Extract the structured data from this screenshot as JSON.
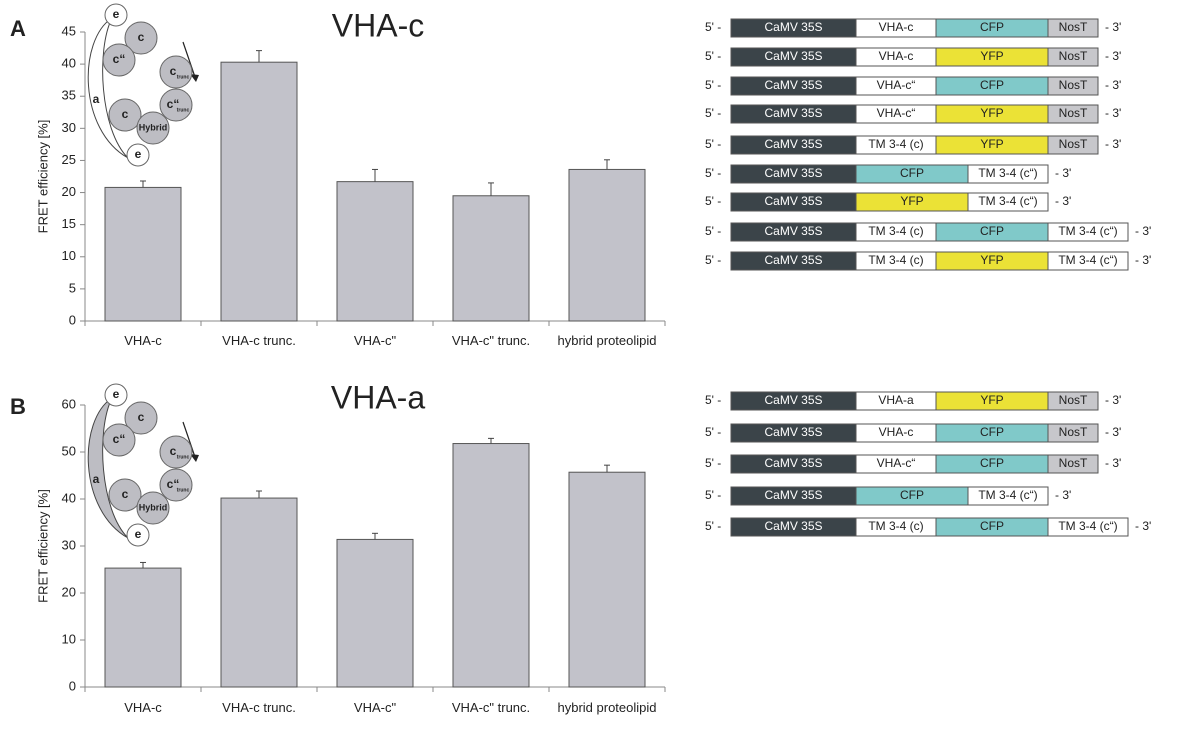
{
  "panel_labels": [
    "A",
    "B"
  ],
  "chart_data": [
    {
      "type": "bar",
      "title": "VHA-c",
      "y_label": "FRET efficiency [%]",
      "categories": [
        "VHA-c",
        "VHA-c trunc.",
        "VHA-c\"",
        "VHA-c\" trunc.",
        "hybrid proteolipid"
      ],
      "values": [
        20.8,
        40.3,
        21.7,
        19.5,
        23.6
      ],
      "errors": [
        1.0,
        1.8,
        1.9,
        2.0,
        1.5
      ],
      "color": "#c2c2ca",
      "ylim": [
        0,
        45
      ],
      "yticks": [
        0,
        5,
        10,
        15,
        20,
        25,
        30,
        35,
        40,
        45
      ],
      "grid": false
    },
    {
      "type": "bar",
      "title": "VHA-a",
      "y_label": "FRET efficiency [%]",
      "categories": [
        "VHA-c",
        "VHA-c trunc.",
        "VHA-c\"",
        "VHA-c\" trunc.",
        "hybrid proteolipid"
      ],
      "values": [
        25.3,
        40.2,
        31.4,
        51.8,
        45.7
      ],
      "errors": [
        1.2,
        1.5,
        1.3,
        1.1,
        1.5
      ],
      "color": "#c2c2ca",
      "ylim": [
        0,
        60
      ],
      "yticks": [
        0,
        10,
        20,
        30,
        40,
        50,
        60
      ],
      "grid": false
    }
  ],
  "insets": [
    {
      "labels": [
        {
          "text": "e"
        },
        {
          "text": "c"
        },
        {
          "text": "c“"
        },
        {
          "text": "c",
          "sub": "trunc"
        },
        {
          "text": "c"
        },
        {
          "text": "c“",
          "sub": "trunc"
        },
        {
          "text": "Hybrid"
        },
        {
          "text": "e"
        },
        {
          "text": "a"
        }
      ]
    },
    {
      "labels": [
        {
          "text": "e"
        },
        {
          "text": "c"
        },
        {
          "text": "c“"
        },
        {
          "text": "c",
          "sub": "trunc"
        },
        {
          "text": "c"
        },
        {
          "text": "c“",
          "sub": "trunc"
        },
        {
          "text": "Hybrid"
        },
        {
          "text": "e"
        },
        {
          "text": "a"
        }
      ]
    }
  ],
  "constructs": [
    [
      {
        "prefix": "5' -",
        "segments": [
          {
            "label": "CaMV 35S",
            "color": "#3b4449"
          },
          {
            "label": "VHA-c",
            "color": "#ffffff"
          },
          {
            "label": "CFP",
            "color": "#80c9c9"
          },
          {
            "label": "NosT",
            "color": "#c7c7cb"
          }
        ],
        "suffix": "- 3'"
      },
      {
        "prefix": "5' -",
        "segments": [
          {
            "label": "CaMV 35S",
            "color": "#3b4449"
          },
          {
            "label": "VHA-c",
            "color": "#ffffff"
          },
          {
            "label": "YFP",
            "color": "#ebe236"
          },
          {
            "label": "NosT",
            "color": "#c7c7cb"
          }
        ],
        "suffix": "- 3'"
      },
      {
        "prefix": "5' -",
        "segments": [
          {
            "label": "CaMV 35S",
            "color": "#3b4449"
          },
          {
            "label": "VHA-c“",
            "color": "#ffffff"
          },
          {
            "label": "CFP",
            "color": "#80c9c9"
          },
          {
            "label": "NosT",
            "color": "#c7c7cb"
          }
        ],
        "suffix": "- 3'"
      },
      {
        "prefix": "5' -",
        "segments": [
          {
            "label": "CaMV 35S",
            "color": "#3b4449"
          },
          {
            "label": "VHA-c“",
            "color": "#ffffff"
          },
          {
            "label": "YFP",
            "color": "#ebe236"
          },
          {
            "label": "NosT",
            "color": "#c7c7cb"
          }
        ],
        "suffix": "- 3'"
      },
      {
        "prefix": "5' -",
        "segments": [
          {
            "label": "CaMV 35S",
            "color": "#3b4449"
          },
          {
            "label": "TM 3-4 (c)",
            "color": "#ffffff"
          },
          {
            "label": "YFP",
            "color": "#ebe236"
          },
          {
            "label": "NosT",
            "color": "#c7c7cb"
          }
        ],
        "suffix": "- 3'"
      },
      {
        "prefix": "5' -",
        "segments": [
          {
            "label": "CaMV 35S",
            "color": "#3b4449"
          },
          {
            "label": "CFP",
            "color": "#80c9c9"
          },
          {
            "label": "TM 3-4 (c“)",
            "color": "#ffffff"
          }
        ],
        "suffix": "- 3'"
      },
      {
        "prefix": "5' -",
        "segments": [
          {
            "label": "CaMV 35S",
            "color": "#3b4449"
          },
          {
            "label": "YFP",
            "color": "#ebe236"
          },
          {
            "label": "TM 3-4 (c“)",
            "color": "#ffffff"
          }
        ],
        "suffix": "- 3'"
      },
      {
        "prefix": "5' -",
        "segments": [
          {
            "label": "CaMV 35S",
            "color": "#3b4449"
          },
          {
            "label": "TM 3-4 (c)",
            "color": "#ffffff"
          },
          {
            "label": "CFP",
            "color": "#80c9c9"
          },
          {
            "label": "TM 3-4 (c“)",
            "color": "#ffffff"
          }
        ],
        "suffix": "- 3'"
      },
      {
        "prefix": "5' -",
        "segments": [
          {
            "label": "CaMV 35S",
            "color": "#3b4449"
          },
          {
            "label": "TM 3-4 (c)",
            "color": "#ffffff"
          },
          {
            "label": "YFP",
            "color": "#ebe236"
          },
          {
            "label": "TM 3-4 (c“)",
            "color": "#ffffff"
          }
        ],
        "suffix": "- 3'"
      }
    ],
    [
      {
        "prefix": "5' -",
        "segments": [
          {
            "label": "CaMV 35S",
            "color": "#3b4449"
          },
          {
            "label": "VHA-a",
            "color": "#ffffff"
          },
          {
            "label": "YFP",
            "color": "#ebe236"
          },
          {
            "label": "NosT",
            "color": "#c7c7cb"
          }
        ],
        "suffix": "- 3'"
      },
      {
        "prefix": "5' -",
        "segments": [
          {
            "label": "CaMV 35S",
            "color": "#3b4449"
          },
          {
            "label": "VHA-c",
            "color": "#ffffff"
          },
          {
            "label": "CFP",
            "color": "#80c9c9"
          },
          {
            "label": "NosT",
            "color": "#c7c7cb"
          }
        ],
        "suffix": "- 3'"
      },
      {
        "prefix": "5' -",
        "segments": [
          {
            "label": "CaMV 35S",
            "color": "#3b4449"
          },
          {
            "label": "VHA-c“",
            "color": "#ffffff"
          },
          {
            "label": "CFP",
            "color": "#80c9c9"
          },
          {
            "label": "NosT",
            "color": "#c7c7cb"
          }
        ],
        "suffix": "- 3'"
      },
      {
        "prefix": "5' -",
        "segments": [
          {
            "label": "CaMV 35S",
            "color": "#3b4449"
          },
          {
            "label": "CFP",
            "color": "#80c9c9"
          },
          {
            "label": "TM 3-4 (c“)",
            "color": "#ffffff"
          }
        ],
        "suffix": "- 3'"
      },
      {
        "prefix": "5' -",
        "segments": [
          {
            "label": "CaMV 35S",
            "color": "#3b4449"
          },
          {
            "label": "TM 3-4 (c)",
            "color": "#ffffff"
          },
          {
            "label": "CFP",
            "color": "#80c9c9"
          },
          {
            "label": "TM 3-4 (c“)",
            "color": "#ffffff"
          }
        ],
        "suffix": "- 3'"
      }
    ]
  ]
}
